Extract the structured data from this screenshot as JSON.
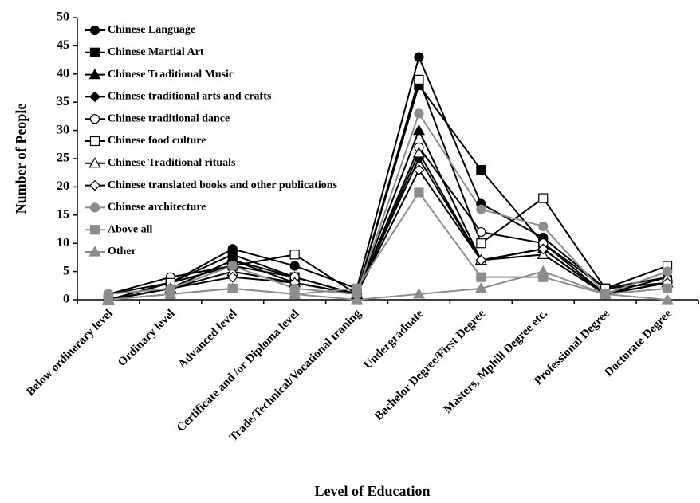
{
  "chart_data": {
    "type": "line",
    "x_label": "Level of Education",
    "y_label": "Number of People",
    "categories": [
      "Below ordinerary level",
      "Ordinary level",
      "Advanced level",
      "Certificate and /or Diploma level",
      "Trade/Technical/Vocational traning",
      "Undergraduate",
      "Bachelor Degree/First Degree",
      "Masters, Mphill Degree etc.",
      "Professional Degree",
      "Doctorate Degree"
    ],
    "ylim": [
      0,
      50
    ],
    "yticks": [
      0,
      5,
      10,
      15,
      20,
      25,
      30,
      35,
      40,
      45,
      50
    ],
    "legend": "upper left",
    "series": [
      {
        "name": "Chinese Language",
        "color": "#000000",
        "marker": "circle",
        "fill": "#000000",
        "values": [
          1,
          3,
          9,
          6,
          2,
          43,
          17,
          11,
          2,
          4
        ]
      },
      {
        "name": "Chinese Martial Art",
        "color": "#000000",
        "marker": "square",
        "fill": "#000000",
        "values": [
          0,
          3,
          8,
          4,
          1,
          38,
          23,
          10,
          2,
          3
        ]
      },
      {
        "name": "Chinese Traditional Music",
        "color": "#000000",
        "marker": "triangle",
        "fill": "#000000",
        "values": [
          0,
          2,
          7,
          4,
          1,
          30,
          7,
          9,
          1,
          3
        ]
      },
      {
        "name": "Chinese traditional arts and crafts",
        "color": "#000000",
        "marker": "diamond",
        "fill": "#000000",
        "values": [
          0,
          2,
          7,
          3,
          1,
          25,
          7,
          9,
          1,
          3
        ]
      },
      {
        "name": "Chinese traditional dance",
        "color": "#000000",
        "marker": "circle",
        "fill": "#ffffff",
        "values": [
          1,
          4,
          6,
          4,
          1,
          27,
          12,
          10,
          1,
          5
        ]
      },
      {
        "name": "Chinese food culture",
        "color": "#000000",
        "marker": "square",
        "fill": "#ffffff",
        "values": [
          0,
          3,
          6,
          8,
          1,
          39,
          10,
          18,
          2,
          6
        ]
      },
      {
        "name": "Chinese Traditional rituals",
        "color": "#000000",
        "marker": "triangle",
        "fill": "#ffffff",
        "values": [
          0,
          2,
          5,
          3,
          1,
          26,
          7,
          8,
          1,
          4
        ]
      },
      {
        "name": "Chinese translated books and other publications",
        "color": "#000000",
        "marker": "diamond",
        "fill": "#ffffff",
        "values": [
          0,
          2,
          4,
          3,
          1,
          23,
          7,
          9,
          1,
          3
        ]
      },
      {
        "name": "Chinese architecture",
        "color": "#8c8c8c",
        "marker": "circle",
        "fill": "#8c8c8c",
        "values": [
          1,
          2,
          6,
          2,
          1,
          33,
          16,
          13,
          1,
          5
        ]
      },
      {
        "name": "Above all",
        "color": "#8c8c8c",
        "marker": "square",
        "fill": "#8c8c8c",
        "values": [
          0,
          1,
          2,
          1,
          2,
          19,
          4,
          4,
          1,
          2
        ]
      },
      {
        "name": "Other",
        "color": "#8c8c8c",
        "marker": "triangle",
        "fill": "#8c8c8c",
        "values": [
          0,
          1,
          2,
          1,
          0,
          1,
          2,
          5,
          1,
          0
        ]
      }
    ]
  }
}
